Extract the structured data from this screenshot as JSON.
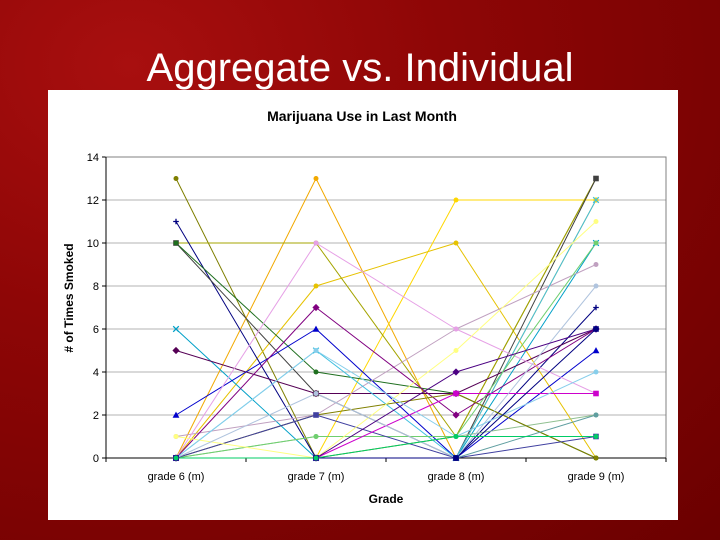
{
  "slide": {
    "title": "Aggregate vs. Individual"
  },
  "chart_data": {
    "type": "line",
    "title": "Marijuana Use in Last Month",
    "xlabel": "Grade",
    "ylabel": "# of Times Smoked",
    "categories": [
      "grade 6 (m)",
      "grade 7 (m)",
      "grade 8 (m)",
      "grade 9 (m)"
    ],
    "ylim": [
      0,
      14
    ],
    "yticks": [
      0,
      2,
      4,
      6,
      8,
      10,
      12,
      14
    ],
    "grid": "horizontal",
    "legend": "none",
    "series": [
      {
        "values": [
          13,
          0,
          1,
          13
        ],
        "color": "#7f7f00",
        "marker": "circle"
      },
      {
        "values": [
          0,
          13,
          0,
          12
        ],
        "color": "#f2a900",
        "marker": "circle"
      },
      {
        "values": [
          0,
          0,
          12,
          12
        ],
        "color": "#ffd700",
        "marker": "circle"
      },
      {
        "values": [
          0,
          8,
          10,
          0
        ],
        "color": "#e6c200",
        "marker": "circle"
      },
      {
        "values": [
          10,
          10,
          1,
          13
        ],
        "color": "#a4a400",
        "marker": "circle"
      },
      {
        "values": [
          11,
          0,
          0,
          7
        ],
        "color": "#000080",
        "marker": "plus"
      },
      {
        "values": [
          10,
          3,
          0,
          13
        ],
        "color": "#404040",
        "marker": "square"
      },
      {
        "values": [
          10,
          4,
          3,
          0
        ],
        "color": "#1f6f1f",
        "marker": "circle"
      },
      {
        "values": [
          6,
          0,
          0,
          10
        ],
        "color": "#00a0c8",
        "marker": "x"
      },
      {
        "values": [
          5,
          3,
          3,
          6
        ],
        "color": "#550055",
        "marker": "diamond"
      },
      {
        "values": [
          2,
          6,
          0,
          5
        ],
        "color": "#0000cc",
        "marker": "triangle"
      },
      {
        "values": [
          1,
          2,
          6,
          9
        ],
        "color": "#c0a0c0",
        "marker": "circle"
      },
      {
        "values": [
          0,
          7,
          2,
          6
        ],
        "color": "#800080",
        "marker": "diamond"
      },
      {
        "values": [
          0,
          5,
          0,
          12
        ],
        "color": "#40c0e0",
        "marker": "x"
      },
      {
        "values": [
          0,
          10,
          6,
          3
        ],
        "color": "#e6a0e6",
        "marker": "circle"
      },
      {
        "values": [
          0,
          1,
          1,
          2
        ],
        "color": "#90c090",
        "marker": "circle"
      },
      {
        "values": [
          0,
          2,
          3,
          0
        ],
        "color": "#808000",
        "marker": "circle"
      },
      {
        "values": [
          0,
          1,
          1,
          10
        ],
        "color": "#6fcf6f",
        "marker": "circle"
      },
      {
        "values": [
          0,
          2,
          0,
          1
        ],
        "color": "#4040a0",
        "marker": "square"
      },
      {
        "values": [
          0,
          0,
          3,
          3
        ],
        "color": "#cc00cc",
        "marker": "square"
      },
      {
        "values": [
          1,
          0,
          5,
          11
        ],
        "color": "#ffff80",
        "marker": "circle"
      },
      {
        "values": [
          0,
          3,
          0,
          8
        ],
        "color": "#b0c4de",
        "marker": "circle"
      },
      {
        "values": [
          0,
          0,
          4,
          6
        ],
        "color": "#4b0082",
        "marker": "diamond"
      },
      {
        "values": [
          0,
          5,
          1,
          4
        ],
        "color": "#87ceeb",
        "marker": "circle"
      },
      {
        "values": [
          0,
          0,
          0,
          2
        ],
        "color": "#5f9ea0",
        "marker": "circle"
      },
      {
        "values": [
          0,
          0,
          0,
          6
        ],
        "color": "#000080",
        "marker": "square"
      },
      {
        "values": [
          0,
          0,
          1,
          1
        ],
        "color": "#00cc66",
        "marker": "circle"
      }
    ]
  }
}
